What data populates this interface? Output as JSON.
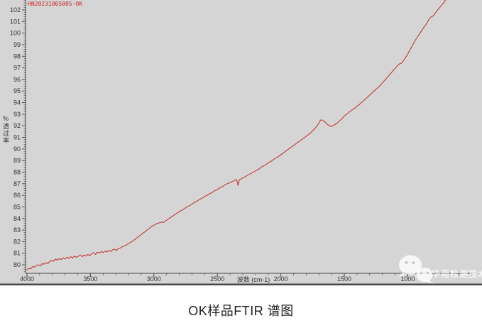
{
  "colors": {
    "page_bg": "#ffffff",
    "chart_bg": "#d5d5d5",
    "curve": "#c23a3a",
    "axis": "#4a4a4a",
    "tick_text": "#333333",
    "annotation_red": "#cc2222",
    "caption_text": "#1f1f1f",
    "chart_bottom_border": "#474747",
    "watermark": "rgba(255,255,255,0.8)",
    "watermark_eyes": "#c9c9c9"
  },
  "annotation": {
    "sample_id": "HN20231005005-OK"
  },
  "watermark": {
    "icon": "wechat-icon",
    "text": "华南检测技术"
  },
  "caption": "OK样品FTIR 谱图",
  "chart_data": {
    "type": "line",
    "title": "",
    "xlabel": "波数 (cm-1)",
    "ylabel": "%透过率",
    "x_axis_reversed": true,
    "x_range": [
      4000,
      480
    ],
    "y_range": [
      79.3,
      102.9
    ],
    "x_ticks_major": [
      4000,
      3500,
      3000,
      2500,
      2000,
      1500,
      1000
    ],
    "x_minor_step": 100,
    "y_tick_labels": [
      80,
      81,
      82,
      83,
      84,
      85,
      86,
      87,
      88,
      89,
      90,
      91,
      92,
      93,
      94,
      95,
      96,
      97,
      98,
      99,
      100,
      101,
      102
    ],
    "y_minor_step": 0.2,
    "grid": false,
    "legend": false,
    "series": [
      {
        "name": "OK样品",
        "color": "#c23a3a",
        "points": [
          [
            4000,
            79.55
          ],
          [
            3985,
            79.7
          ],
          [
            3970,
            79.65
          ],
          [
            3955,
            79.85
          ],
          [
            3940,
            79.8
          ],
          [
            3925,
            79.95
          ],
          [
            3910,
            80.0
          ],
          [
            3895,
            79.9
          ],
          [
            3880,
            80.1
          ],
          [
            3865,
            80.05
          ],
          [
            3850,
            80.2
          ],
          [
            3835,
            80.1
          ],
          [
            3820,
            80.3
          ],
          [
            3805,
            80.4
          ],
          [
            3790,
            80.3
          ],
          [
            3775,
            80.5
          ],
          [
            3760,
            80.4
          ],
          [
            3745,
            80.55
          ],
          [
            3730,
            80.45
          ],
          [
            3715,
            80.6
          ],
          [
            3700,
            80.5
          ],
          [
            3685,
            80.65
          ],
          [
            3670,
            80.55
          ],
          [
            3655,
            80.7
          ],
          [
            3640,
            80.6
          ],
          [
            3625,
            80.75
          ],
          [
            3610,
            80.65
          ],
          [
            3595,
            80.75
          ],
          [
            3580,
            80.85
          ],
          [
            3565,
            80.7
          ],
          [
            3550,
            80.85
          ],
          [
            3535,
            80.75
          ],
          [
            3520,
            80.9
          ],
          [
            3505,
            80.8
          ],
          [
            3490,
            80.95
          ],
          [
            3475,
            81.05
          ],
          [
            3460,
            80.9
          ],
          [
            3445,
            81.1
          ],
          [
            3430,
            81.0
          ],
          [
            3415,
            81.15
          ],
          [
            3400,
            81.05
          ],
          [
            3385,
            81.2
          ],
          [
            3370,
            81.1
          ],
          [
            3355,
            81.25
          ],
          [
            3340,
            81.15
          ],
          [
            3325,
            81.3
          ],
          [
            3310,
            81.35
          ],
          [
            3295,
            81.25
          ],
          [
            3280,
            81.4
          ],
          [
            3265,
            81.45
          ],
          [
            3250,
            81.55
          ],
          [
            3235,
            81.6
          ],
          [
            3220,
            81.7
          ],
          [
            3205,
            81.8
          ],
          [
            3190,
            81.9
          ],
          [
            3175,
            82.0
          ],
          [
            3160,
            82.1
          ],
          [
            3145,
            82.25
          ],
          [
            3130,
            82.35
          ],
          [
            3115,
            82.5
          ],
          [
            3100,
            82.6
          ],
          [
            3085,
            82.75
          ],
          [
            3070,
            82.85
          ],
          [
            3055,
            83.0
          ],
          [
            3040,
            83.1
          ],
          [
            3025,
            83.25
          ],
          [
            3010,
            83.35
          ],
          [
            2995,
            83.45
          ],
          [
            2980,
            83.55
          ],
          [
            2965,
            83.6
          ],
          [
            2950,
            83.65
          ],
          [
            2935,
            83.7
          ],
          [
            2925,
            83.65
          ],
          [
            2915,
            83.75
          ],
          [
            2900,
            83.85
          ],
          [
            2880,
            84.0
          ],
          [
            2860,
            84.15
          ],
          [
            2840,
            84.3
          ],
          [
            2820,
            84.45
          ],
          [
            2800,
            84.6
          ],
          [
            2780,
            84.7
          ],
          [
            2760,
            84.85
          ],
          [
            2740,
            85.0
          ],
          [
            2720,
            85.1
          ],
          [
            2700,
            85.25
          ],
          [
            2680,
            85.4
          ],
          [
            2660,
            85.5
          ],
          [
            2640,
            85.65
          ],
          [
            2620,
            85.75
          ],
          [
            2600,
            85.9
          ],
          [
            2580,
            86.0
          ],
          [
            2560,
            86.15
          ],
          [
            2540,
            86.25
          ],
          [
            2520,
            86.4
          ],
          [
            2500,
            86.5
          ],
          [
            2480,
            86.65
          ],
          [
            2460,
            86.75
          ],
          [
            2440,
            86.9
          ],
          [
            2420,
            87.0
          ],
          [
            2400,
            87.1
          ],
          [
            2380,
            87.2
          ],
          [
            2360,
            87.3
          ],
          [
            2348,
            87.35
          ],
          [
            2342,
            87.1
          ],
          [
            2337,
            86.85
          ],
          [
            2332,
            87.05
          ],
          [
            2326,
            87.35
          ],
          [
            2315,
            87.4
          ],
          [
            2300,
            87.5
          ],
          [
            2275,
            87.65
          ],
          [
            2250,
            87.8
          ],
          [
            2225,
            87.95
          ],
          [
            2200,
            88.1
          ],
          [
            2175,
            88.25
          ],
          [
            2150,
            88.45
          ],
          [
            2125,
            88.6
          ],
          [
            2100,
            88.8
          ],
          [
            2075,
            88.95
          ],
          [
            2050,
            89.15
          ],
          [
            2025,
            89.3
          ],
          [
            2000,
            89.5
          ],
          [
            1975,
            89.7
          ],
          [
            1950,
            89.9
          ],
          [
            1925,
            90.1
          ],
          [
            1900,
            90.3
          ],
          [
            1875,
            90.5
          ],
          [
            1850,
            90.7
          ],
          [
            1825,
            90.9
          ],
          [
            1800,
            91.1
          ],
          [
            1775,
            91.3
          ],
          [
            1750,
            91.55
          ],
          [
            1725,
            91.85
          ],
          [
            1705,
            92.15
          ],
          [
            1695,
            92.35
          ],
          [
            1685,
            92.5
          ],
          [
            1675,
            92.5
          ],
          [
            1660,
            92.4
          ],
          [
            1645,
            92.25
          ],
          [
            1630,
            92.1
          ],
          [
            1615,
            92.0
          ],
          [
            1605,
            91.95
          ],
          [
            1590,
            92.0
          ],
          [
            1575,
            92.1
          ],
          [
            1560,
            92.2
          ],
          [
            1545,
            92.35
          ],
          [
            1530,
            92.5
          ],
          [
            1515,
            92.65
          ],
          [
            1500,
            92.85
          ],
          [
            1480,
            93.0
          ],
          [
            1460,
            93.2
          ],
          [
            1440,
            93.35
          ],
          [
            1420,
            93.5
          ],
          [
            1400,
            93.7
          ],
          [
            1380,
            93.85
          ],
          [
            1360,
            94.05
          ],
          [
            1340,
            94.25
          ],
          [
            1320,
            94.45
          ],
          [
            1300,
            94.65
          ],
          [
            1280,
            94.85
          ],
          [
            1260,
            95.05
          ],
          [
            1240,
            95.25
          ],
          [
            1220,
            95.45
          ],
          [
            1200,
            95.7
          ],
          [
            1180,
            95.95
          ],
          [
            1160,
            96.2
          ],
          [
            1140,
            96.45
          ],
          [
            1120,
            96.7
          ],
          [
            1100,
            96.95
          ],
          [
            1080,
            97.2
          ],
          [
            1065,
            97.35
          ],
          [
            1050,
            97.4
          ],
          [
            1035,
            97.6
          ],
          [
            1020,
            97.85
          ],
          [
            1005,
            98.1
          ],
          [
            990,
            98.4
          ],
          [
            975,
            98.7
          ],
          [
            960,
            99.0
          ],
          [
            945,
            99.3
          ],
          [
            930,
            99.55
          ],
          [
            915,
            99.8
          ],
          [
            900,
            100.05
          ],
          [
            885,
            100.3
          ],
          [
            870,
            100.55
          ],
          [
            855,
            100.75
          ],
          [
            845,
            100.95
          ],
          [
            835,
            101.15
          ],
          [
            825,
            101.3
          ],
          [
            815,
            101.4
          ],
          [
            805,
            101.45
          ],
          [
            795,
            101.55
          ],
          [
            785,
            101.7
          ],
          [
            775,
            101.85
          ],
          [
            760,
            102.05
          ],
          [
            745,
            102.25
          ],
          [
            730,
            102.45
          ],
          [
            715,
            102.65
          ],
          [
            700,
            102.9
          ],
          [
            685,
            103.1
          ],
          [
            670,
            103.3
          ]
        ]
      }
    ]
  }
}
